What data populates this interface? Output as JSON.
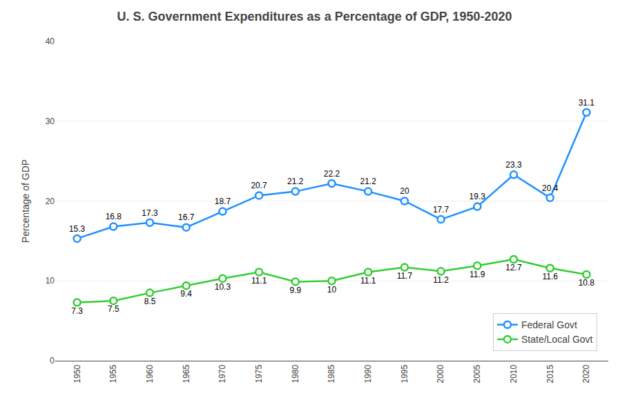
{
  "chart_data": {
    "type": "line",
    "title": "U. S. Government Expenditures as a Percentage of GDP, 1950-2020",
    "ylabel": "Percentage of GDP",
    "x": [
      1950,
      1955,
      1960,
      1965,
      1970,
      1975,
      1980,
      1985,
      1990,
      1995,
      2000,
      2005,
      2010,
      2015,
      2020
    ],
    "series": [
      {
        "name": "Federal Govt",
        "color": "#1E90FF",
        "values": [
          15.3,
          16.8,
          17.3,
          16.7,
          18.7,
          20.7,
          21.2,
          22.2,
          21.2,
          20.0,
          17.7,
          19.3,
          23.3,
          20.4,
          31.1
        ]
      },
      {
        "name": "State/Local Govt",
        "color": "#32CD32",
        "values": [
          7.3,
          7.5,
          8.5,
          9.4,
          10.3,
          11.1,
          9.9,
          10.0,
          11.1,
          11.7,
          11.2,
          11.9,
          12.7,
          11.6,
          10.8
        ]
      }
    ],
    "xlim": [
      1947,
      2023
    ],
    "xticks": [
      1950,
      1955,
      1960,
      1965,
      1970,
      1975,
      1980,
      1985,
      1990,
      1995,
      2000,
      2005,
      2010,
      2015,
      2020
    ],
    "ylim": [
      0,
      40
    ],
    "yticks": [
      0,
      10,
      20,
      30,
      40
    ],
    "grid": true,
    "legend": "lower right",
    "marker": "circle",
    "data_labels": true
  }
}
